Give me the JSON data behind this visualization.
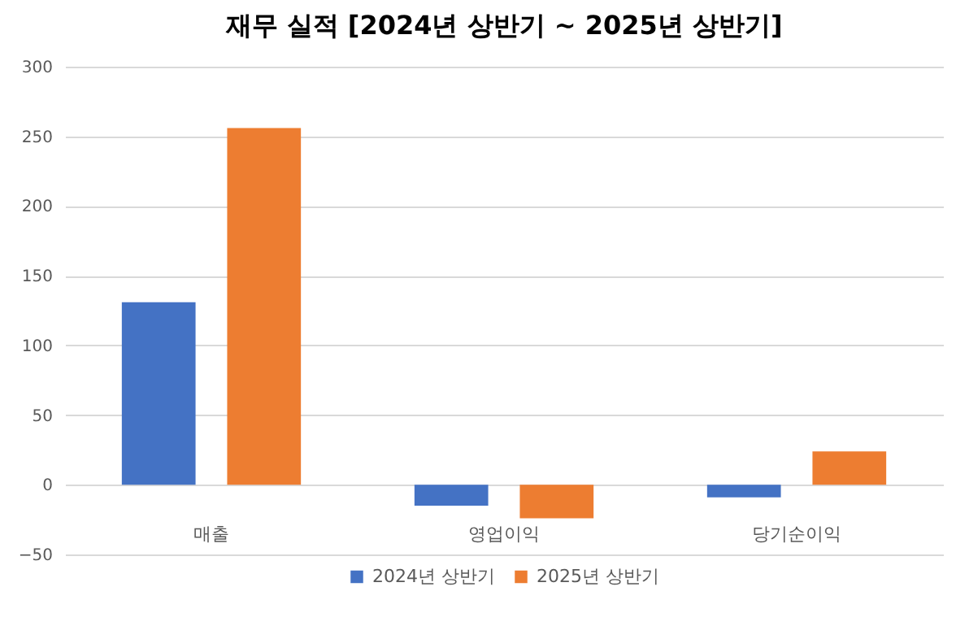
{
  "chart_data": {
    "type": "bar",
    "title": "재무 실적 [2024년 상반기 ~ 2025년 상반기]",
    "categories": [
      "매출",
      "영업이익",
      "당기순이익"
    ],
    "series": [
      {
        "name": "2024년 상반기",
        "color": "#4472c4",
        "values": [
          131,
          -15,
          -9
        ]
      },
      {
        "name": "2025년 상반기",
        "color": "#ed7d31",
        "values": [
          256,
          -24,
          24
        ]
      }
    ],
    "ylim": [
      -50,
      300
    ],
    "yticks": [
      -50,
      0,
      50,
      100,
      150,
      200,
      250,
      300
    ],
    "grid": "y",
    "legend": "bottom"
  }
}
